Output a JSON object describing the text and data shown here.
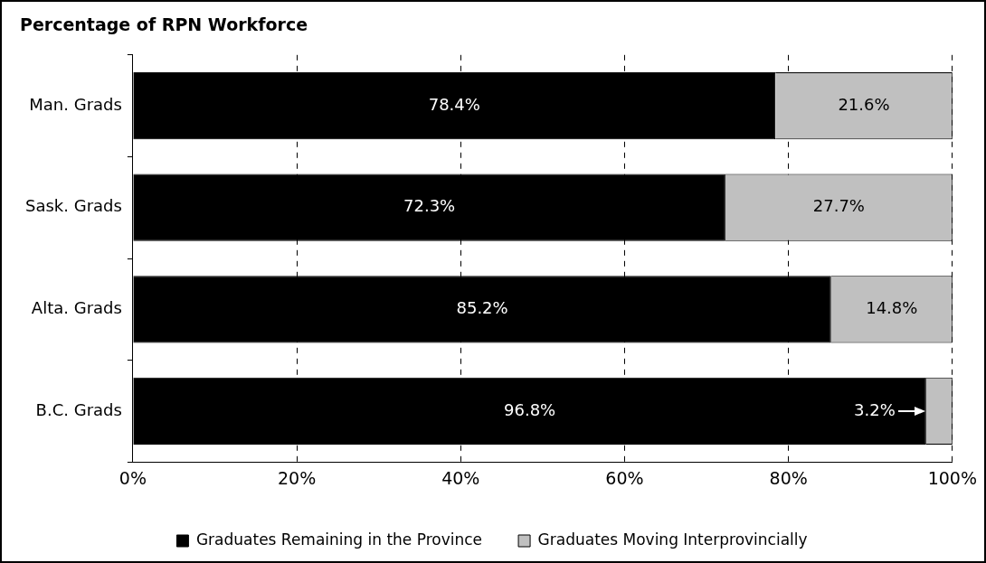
{
  "chart_data": {
    "type": "bar",
    "orientation": "horizontal",
    "stacked": true,
    "title": "Percentage of RPN Workforce",
    "categories": [
      "Man. Grads",
      "Sask. Grads",
      "Alta. Grads",
      "B.C. Grads"
    ],
    "series": [
      {
        "name": "Graduates Remaining in the Province",
        "color": "#000000",
        "values": [
          78.4,
          72.3,
          85.2,
          96.8
        ],
        "value_labels": [
          "78.4%",
          "72.3%",
          "85.2%",
          "96.8%"
        ]
      },
      {
        "name": "Graduates Moving Interprovincially",
        "color": "#c0c0c0",
        "values": [
          21.6,
          27.7,
          14.8,
          3.2
        ],
        "value_labels": [
          "21.6%",
          "27.7%",
          "14.8%",
          "3.2%"
        ]
      }
    ],
    "xlim": [
      0,
      100
    ],
    "xticks": [
      {
        "value": 0,
        "label": "0%"
      },
      {
        "value": 20,
        "label": "20%"
      },
      {
        "value": 40,
        "label": "40%"
      },
      {
        "value": 60,
        "label": "60%"
      },
      {
        "value": 80,
        "label": "80%"
      },
      {
        "value": 100,
        "label": "100%"
      }
    ],
    "grid": "x",
    "legend": "bottom"
  }
}
